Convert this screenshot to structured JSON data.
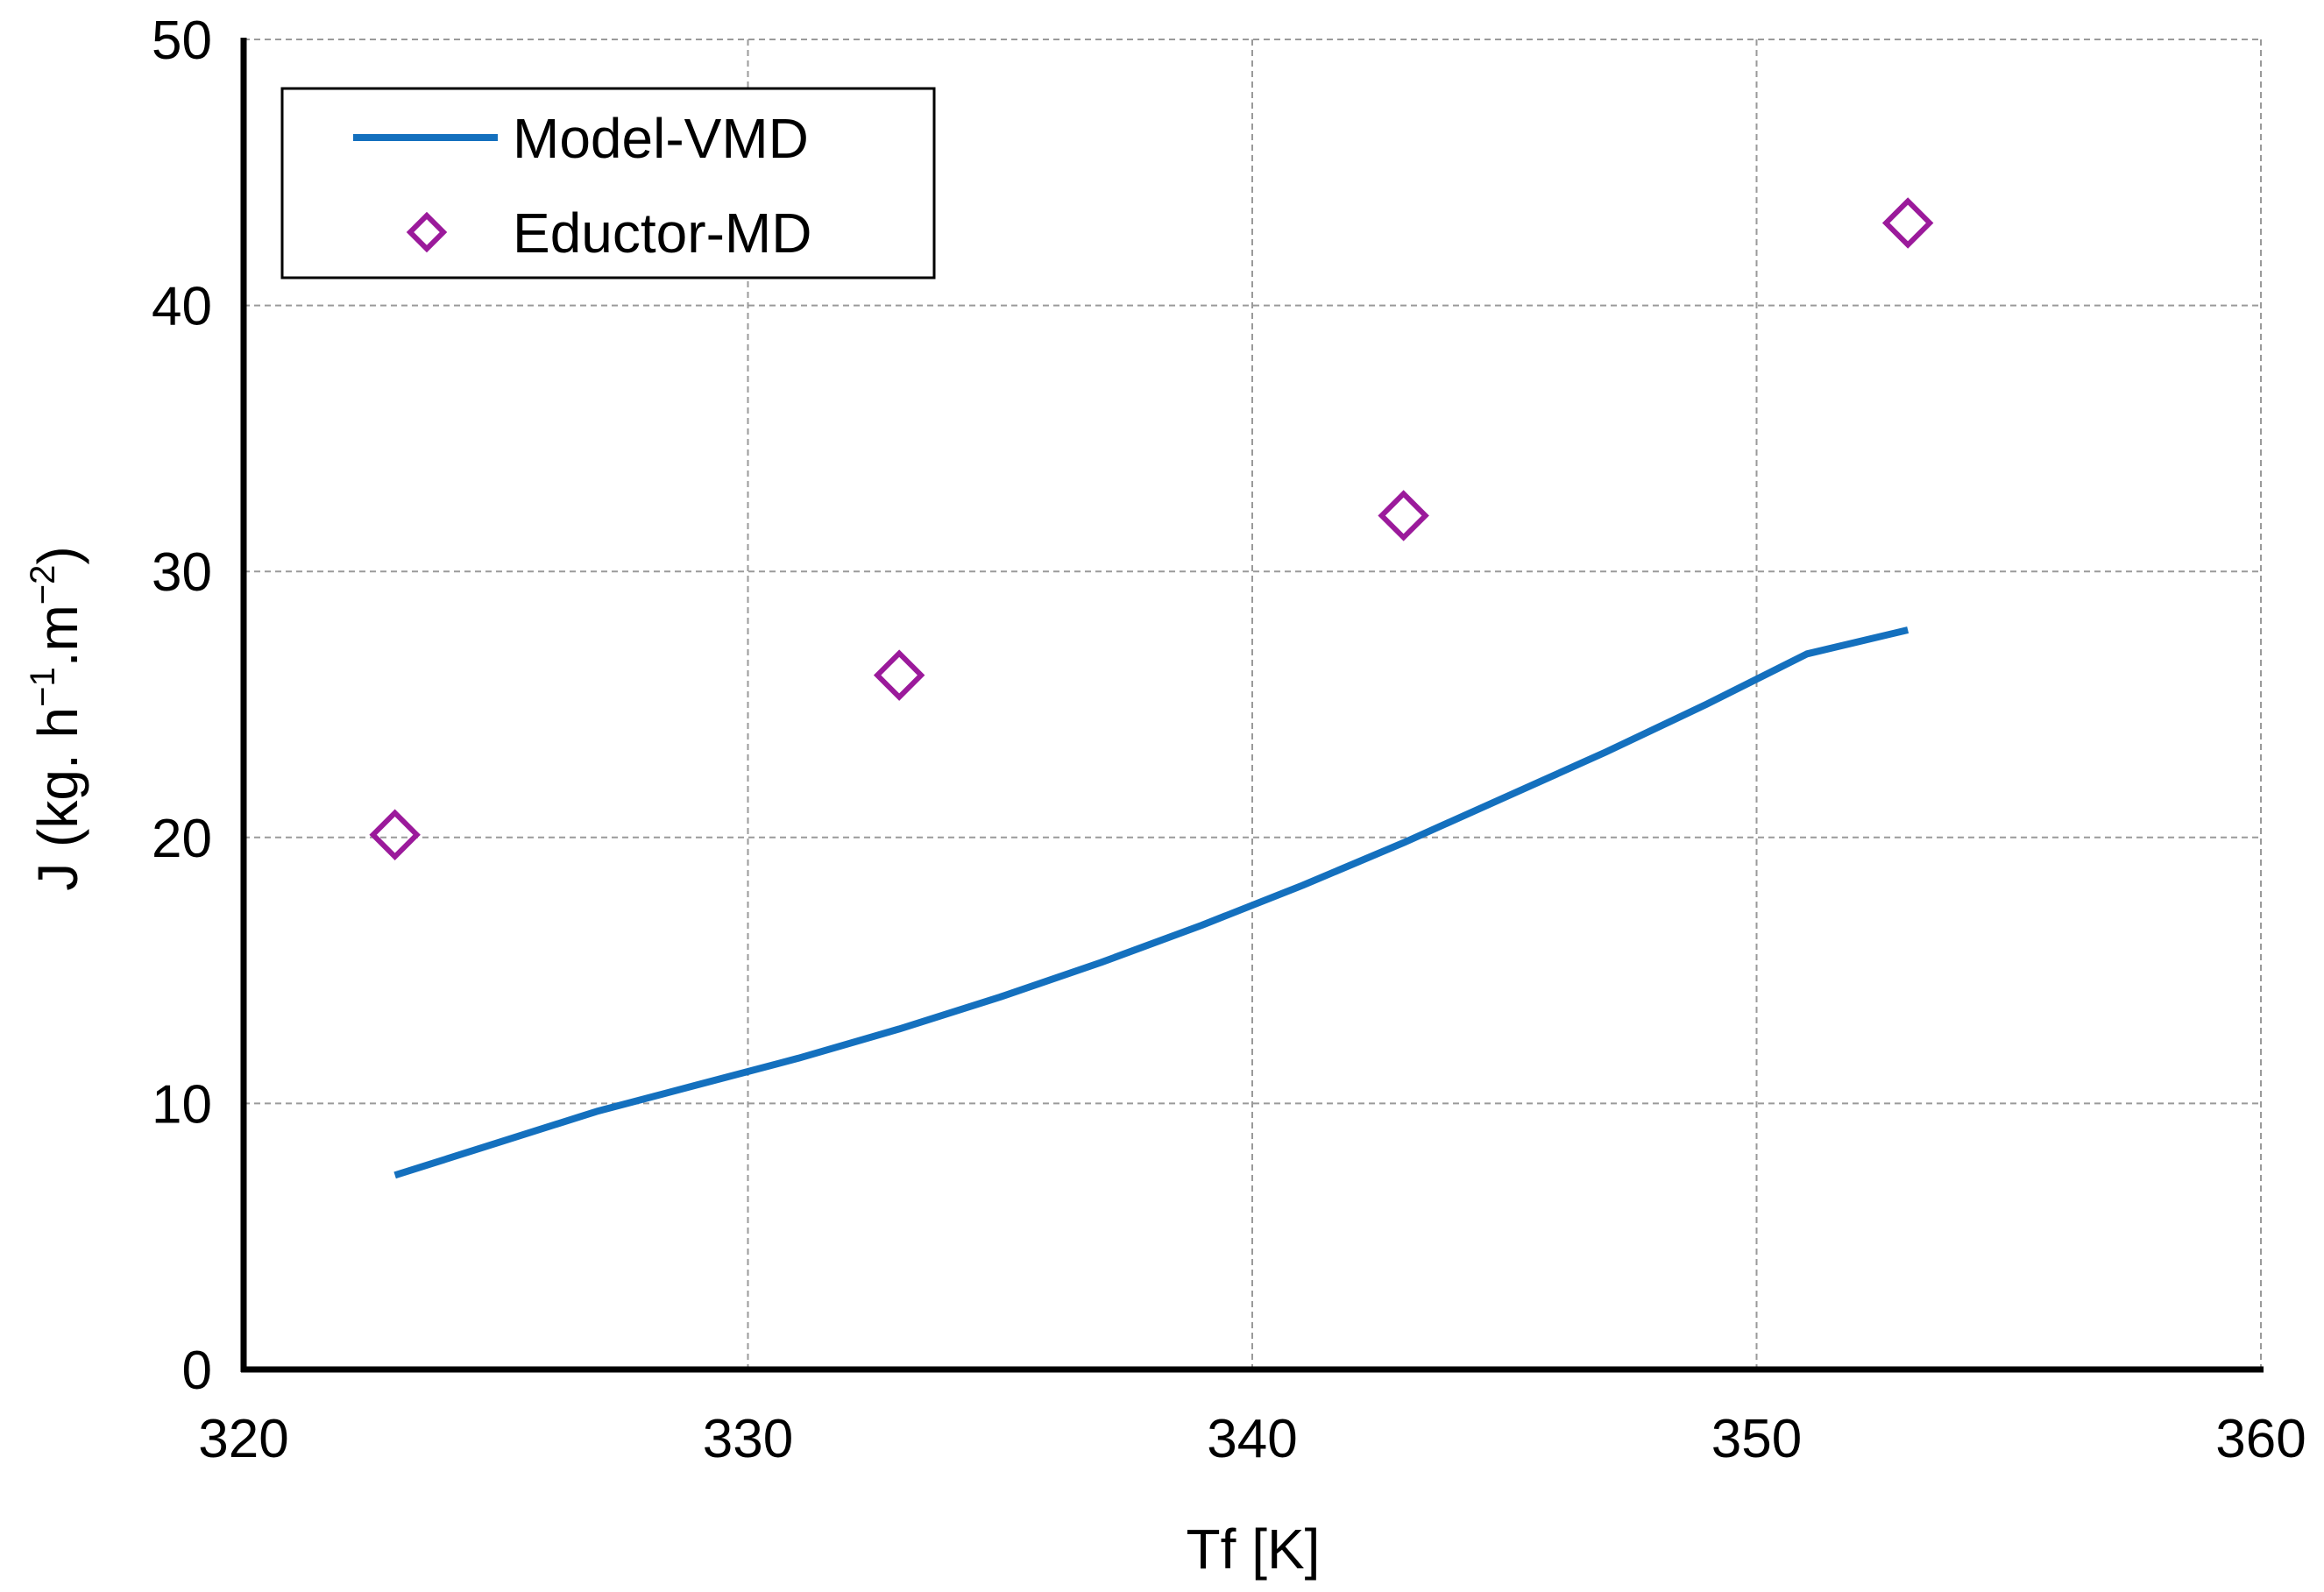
{
  "chart_data": {
    "type": "line",
    "title": "",
    "xlabel": "Tf [K]",
    "ylabel": "J (kg. h",
    "ylabel_sup1": "−1",
    "ylabel_mid": ".m",
    "ylabel_sup2": "−2",
    "ylabel_end": ")",
    "xlim": [
      320,
      360
    ],
    "ylim": [
      0,
      50
    ],
    "xticks": [
      320,
      330,
      340,
      350,
      360
    ],
    "yticks": [
      0,
      10,
      20,
      30,
      40,
      50
    ],
    "grid": true,
    "legend_position": "top-left",
    "series": [
      {
        "name": "Model-VMD",
        "kind": "line",
        "color": "#1470BE",
        "x": [
          323,
          325,
          327,
          329,
          331,
          333,
          335,
          337,
          339,
          341,
          343,
          345,
          347,
          349,
          351,
          353
        ],
        "y": [
          7.3,
          8.5,
          9.7,
          10.7,
          11.7,
          12.8,
          14.0,
          15.3,
          16.7,
          18.2,
          19.8,
          21.5,
          23.2,
          25.0,
          26.9,
          27.8
        ]
      },
      {
        "name": "Eductor-MD",
        "kind": "scatter",
        "marker": "diamond",
        "color": "#9B1A9B",
        "x": [
          323,
          333,
          343,
          353
        ],
        "y": [
          20.1,
          26.1,
          32.1,
          43.1
        ]
      }
    ]
  }
}
